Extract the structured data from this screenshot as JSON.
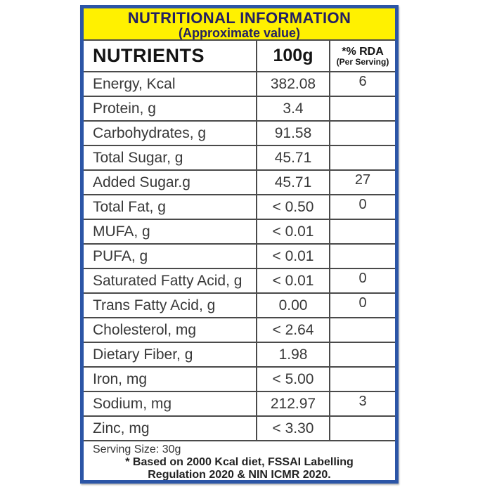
{
  "colors": {
    "border_blue": "#2B55A6",
    "header_yellow": "#FFF100",
    "header_text_navy": "#232063",
    "grid_line": "#4A4A4A",
    "body_text": "#383838"
  },
  "header": {
    "title": "NUTRITIONAL INFORMATION",
    "subtitle": "(Approximate value)"
  },
  "table": {
    "columns": [
      {
        "label": "NUTRIENTS"
      },
      {
        "label": "100g"
      },
      {
        "label": "*% RDA",
        "sublabel": "(Per Serving)"
      }
    ],
    "rows": [
      {
        "label": "Energy, Kcal",
        "per_100g": "382.08",
        "rda": "6"
      },
      {
        "label": "Protein, g",
        "per_100g": "3.4",
        "rda": ""
      },
      {
        "label": "Carbohydrates, g",
        "per_100g": "91.58",
        "rda": ""
      },
      {
        "label": "Total Sugar, g",
        "per_100g": "45.71",
        "rda": ""
      },
      {
        "label": "Added Sugar.g",
        "per_100g": "45.71",
        "rda": "27"
      },
      {
        "label": "Total Fat, g",
        "per_100g": "< 0.50",
        "rda": "0"
      },
      {
        "label": "MUFA, g",
        "per_100g": "< 0.01",
        "rda": ""
      },
      {
        "label": "PUFA, g",
        "per_100g": "< 0.01",
        "rda": ""
      },
      {
        "label": "Saturated Fatty Acid, g",
        "per_100g": "< 0.01",
        "rda": "0"
      },
      {
        "label": "Trans Fatty Acid, g",
        "per_100g": "0.00",
        "rda": "0"
      },
      {
        "label": "Cholesterol, mg",
        "per_100g": "< 2.64",
        "rda": ""
      },
      {
        "label": "Dietary Fiber, g",
        "per_100g": "1.98",
        "rda": ""
      },
      {
        "label": "Iron, mg",
        "per_100g": "< 5.00",
        "rda": ""
      },
      {
        "label": "Sodium, mg",
        "per_100g": "212.97",
        "rda": "3"
      },
      {
        "label": "Zinc, mg",
        "per_100g": "< 3.30",
        "rda": ""
      }
    ]
  },
  "footer": {
    "serving_size": "Serving Size: 30g",
    "note_line1": "* Based on 2000 Kcal diet, FSSAI Labelling",
    "note_line2": "Regulation 2020 & NIN ICMR 2020."
  }
}
